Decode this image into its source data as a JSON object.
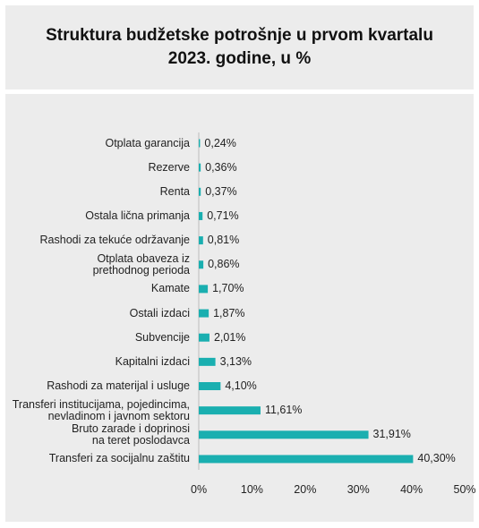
{
  "chart_data": {
    "type": "barh",
    "title": "Struktura budžetske potrošnje u prvom kvartalu 2023. godine, u %",
    "categories": [
      "Otplata garancija",
      "Rezerve",
      "Renta",
      "Ostala lična primanja",
      "Rashodi za tekuće održavanje",
      "Otplata obaveza iz\nprethodnog perioda",
      "Kamate",
      "Ostali izdaci",
      "Subvencije",
      "Kapitalni izdaci",
      "Rashodi za materijal i usluge",
      "Transferi institucijama, pojedincima,\nnevladinom i javnom sektoru",
      "Bruto zarade i doprinosi\nna teret poslodavca",
      "Transferi za socijalnu zaštitu"
    ],
    "values": [
      0.24,
      0.36,
      0.37,
      0.71,
      0.81,
      0.86,
      1.7,
      1.87,
      2.01,
      3.13,
      4.1,
      11.61,
      31.91,
      40.3
    ],
    "value_labels": [
      "0,24%",
      "0,36%",
      "0,37%",
      "0,71%",
      "0,81%",
      "0,86%",
      "1,70%",
      "1,87%",
      "2,01%",
      "3,13%",
      "4,10%",
      "11,61%",
      "31,91%",
      "40,30%"
    ],
    "color": "#1aafb0",
    "xlim": [
      0,
      50
    ],
    "xticks": [
      {
        "value": 0,
        "label": "0%"
      },
      {
        "value": 10,
        "label": "10%"
      },
      {
        "value": 20,
        "label": "20%"
      },
      {
        "value": 30,
        "label": "30%"
      },
      {
        "value": 40,
        "label": "40%"
      },
      {
        "value": 50,
        "label": "50%"
      }
    ]
  }
}
